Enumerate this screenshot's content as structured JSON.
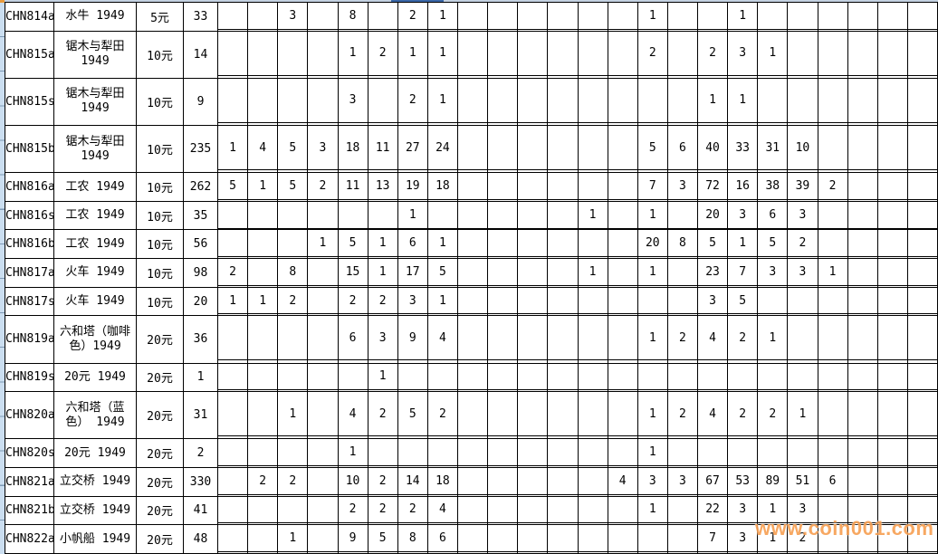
{
  "watermark": "www.coin001.com",
  "colors": {
    "alt_row_bg": "#EDEDD9",
    "gutter_bg": "#CBDEF0",
    "top_strip": "#C4D2E2",
    "top_strip_accent": "#3A67A8",
    "watermark_color": "#F7A155",
    "grid_line": "#000000"
  },
  "table": {
    "grid_columns": 24,
    "rows": [
      {
        "id": "CHN814a",
        "description": "水牛 1949",
        "denomination": "5元",
        "count": "33",
        "values": {
          "3": "3",
          "5": "8",
          "7": "2",
          "8": "1",
          "15": "1",
          "18": "1"
        }
      },
      {
        "id": "CHN815a",
        "description": "锯木与犁田 1949",
        "denomination": "10元",
        "count": "14",
        "values": {
          "5": "1",
          "6": "2",
          "7": "1",
          "8": "1",
          "15": "2",
          "17": "2",
          "18": "3",
          "19": "1"
        }
      },
      {
        "id": "CHN815s",
        "description": "锯木与犁田 1949",
        "denomination": "10元",
        "count": "9",
        "values": {
          "5": "3",
          "7": "2",
          "8": "1",
          "17": "1",
          "18": "1"
        }
      },
      {
        "id": "CHN815b",
        "description": "锯木与犁田 1949",
        "denomination": "10元",
        "count": "235",
        "values": {
          "1": "1",
          "2": "4",
          "3": "5",
          "4": "3",
          "5": "18",
          "6": "11",
          "7": "27",
          "8": "24",
          "15": "5",
          "16": "6",
          "17": "40",
          "18": "33",
          "19": "31",
          "20": "10"
        }
      },
      {
        "id": "CHN816a",
        "description": "工农 1949",
        "denomination": "10元",
        "count": "262",
        "values": {
          "1": "5",
          "2": "1",
          "3": "5",
          "4": "2",
          "5": "11",
          "6": "13",
          "7": "19",
          "8": "18",
          "15": "7",
          "16": "3",
          "17": "72",
          "18": "16",
          "19": "38",
          "20": "39",
          "21": "2"
        }
      },
      {
        "id": "CHN816s",
        "description": "工农 1949",
        "denomination": "10元",
        "count": "35",
        "values": {
          "7": "1",
          "13": "1",
          "15": "1",
          "17": "20",
          "18": "3",
          "19": "6",
          "20": "3"
        }
      },
      {
        "id": "CHN816b",
        "description": "工农 1949",
        "denomination": "10元",
        "count": "56",
        "values": {
          "4": "1",
          "5": "5",
          "6": "1",
          "7": "6",
          "8": "1",
          "15": "20",
          "16": "8",
          "17": "5",
          "18": "1",
          "19": "5",
          "20": "2"
        }
      },
      {
        "id": "CHN817a",
        "description": "火车 1949",
        "denomination": "10元",
        "count": "98",
        "values": {
          "1": "2",
          "3": "8",
          "5": "15",
          "6": "1",
          "7": "17",
          "8": "5",
          "13": "1",
          "15": "1",
          "17": "23",
          "18": "7",
          "19": "3",
          "20": "3",
          "21": "1"
        }
      },
      {
        "id": "CHN817s",
        "description": "火车 1949",
        "denomination": "10元",
        "count": "20",
        "values": {
          "1": "1",
          "2": "1",
          "3": "2",
          "5": "2",
          "6": "2",
          "7": "3",
          "8": "1",
          "17": "3",
          "18": "5"
        }
      },
      {
        "id": "CHN819a",
        "description": "六和塔（咖啡色）1949",
        "denomination": "20元",
        "count": "36",
        "values": {
          "5": "6",
          "6": "3",
          "7": "9",
          "8": "4",
          "15": "1",
          "16": "2",
          "17": "4",
          "18": "2",
          "19": "1"
        }
      },
      {
        "id": "CHN819s",
        "description": "20元 1949",
        "denomination": "20元",
        "count": "1",
        "values": {
          "6": "1"
        }
      },
      {
        "id": "CHN820a",
        "description": "六和塔（蓝色） 1949",
        "denomination": "20元",
        "count": "31",
        "values": {
          "3": "1",
          "5": "4",
          "6": "2",
          "7": "5",
          "8": "2",
          "15": "1",
          "16": "2",
          "17": "4",
          "18": "2",
          "19": "2",
          "20": "1"
        }
      },
      {
        "id": "CHN820s",
        "description": "20元 1949",
        "denomination": "20元",
        "count": "2",
        "values": {
          "5": "1",
          "15": "1"
        }
      },
      {
        "id": "CHN821a",
        "description": "立交桥 1949",
        "denomination": "20元",
        "count": "330",
        "values": {
          "2": "2",
          "3": "2",
          "5": "10",
          "6": "2",
          "7": "14",
          "8": "18",
          "14": "4",
          "15": "3",
          "16": "3",
          "17": "67",
          "18": "53",
          "19": "89",
          "20": "51",
          "21": "6"
        }
      },
      {
        "id": "CHN821b",
        "description": "立交桥 1949",
        "denomination": "20元",
        "count": "41",
        "values": {
          "5": "2",
          "6": "2",
          "7": "2",
          "8": "4",
          "15": "1",
          "17": "22",
          "18": "3",
          "19": "1",
          "20": "3"
        }
      },
      {
        "id": "CHN822a",
        "description": "小帆船 1949",
        "denomination": "20元",
        "count": "48",
        "values": {
          "3": "1",
          "5": "9",
          "6": "5",
          "7": "8",
          "8": "6",
          "17": "7",
          "18": "3",
          "19": "1",
          "20": "2"
        }
      }
    ]
  }
}
